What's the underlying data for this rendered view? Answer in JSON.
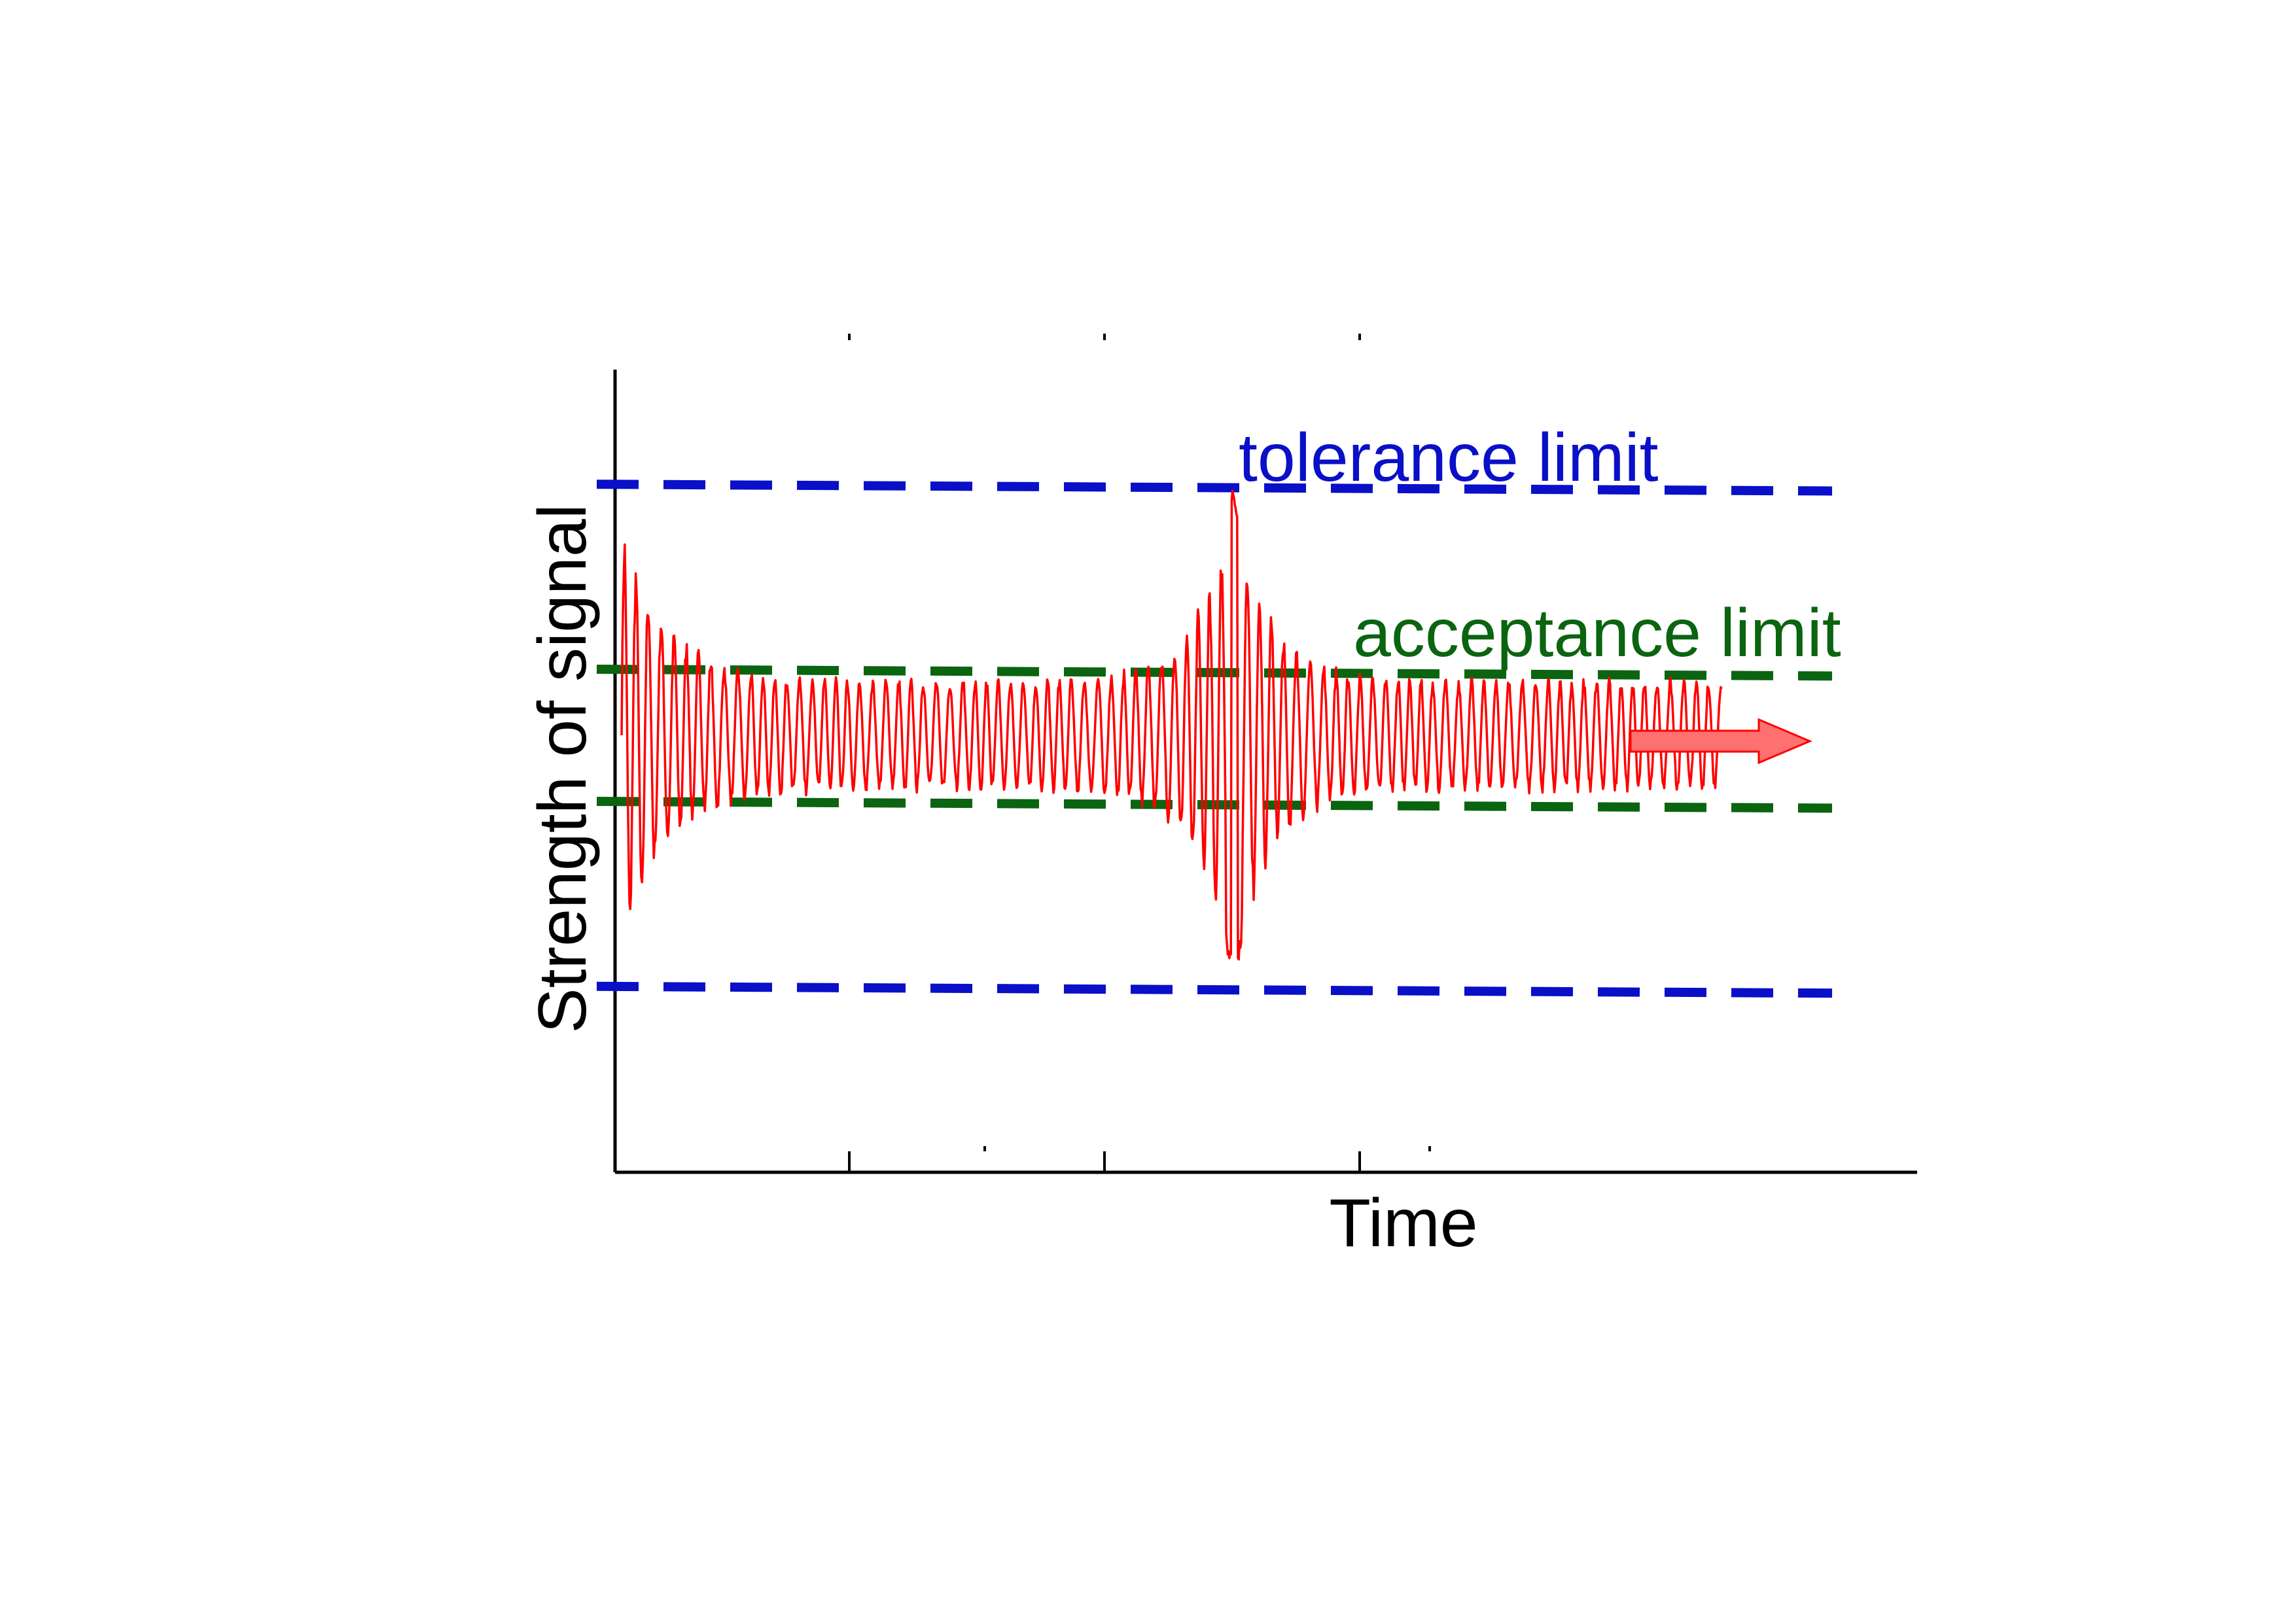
{
  "chart_data": {
    "type": "line",
    "title": "",
    "xlabel": "Time",
    "ylabel": "Strength of signal",
    "grid": false,
    "xlim": [
      0,
      100
    ],
    "ylim": [
      -1.25,
      1.25
    ],
    "limits": [
      {
        "name": "tolerance limit",
        "kind": "tolerance",
        "upper": 0.95,
        "lower": -0.95,
        "color": "#0a0fc8"
      },
      {
        "name": "acceptance limit",
        "kind": "acceptance",
        "upper": 0.25,
        "lower": -0.25,
        "color": "#0a6410"
      }
    ],
    "signal": {
      "color": "#ff0000",
      "x_start": 0.5,
      "x_end": 85,
      "base_amplitude": 0.22,
      "events": [
        {
          "at": 0.5,
          "peak": 0.82
        },
        {
          "at": 47.5,
          "peak": 0.95
        }
      ],
      "arrow_color": "#ff7070",
      "direction": "continues"
    }
  }
}
